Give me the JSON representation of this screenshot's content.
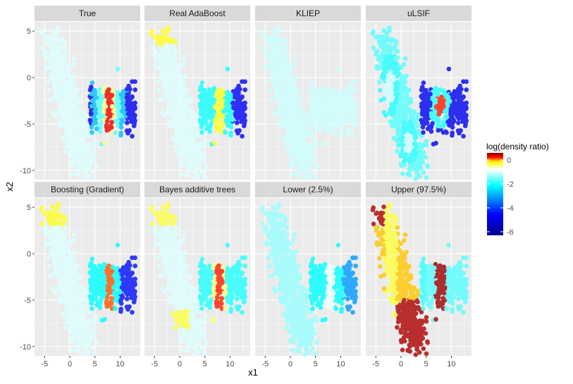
{
  "chart_data": {
    "type": "scatter",
    "layout": "facet-grid",
    "xlabel": "x1",
    "ylabel": "x2",
    "xlim": [
      -7,
      14
    ],
    "ylim": [
      -11,
      6
    ],
    "xticks": [
      -5,
      0,
      5,
      10
    ],
    "yticks": [
      5,
      0,
      -5,
      -10
    ],
    "grid": true,
    "legend": {
      "title": "log(density ratio)",
      "placement": "right",
      "ticks": [
        0,
        -2,
        -4,
        -6
      ],
      "range": [
        -6.3,
        0.6
      ],
      "palette": "matlab-like"
    },
    "panels": [
      {
        "title": "True"
      },
      {
        "title": "Real AdaBoost"
      },
      {
        "title": "KLIEP"
      },
      {
        "title": "uLSIF"
      },
      {
        "title": "Boosting (Gradient)"
      },
      {
        "title": "Bayes additive trees"
      },
      {
        "title": "Lower (2.5%)"
      },
      {
        "title": "Upper (97.5%)"
      }
    ]
  }
}
